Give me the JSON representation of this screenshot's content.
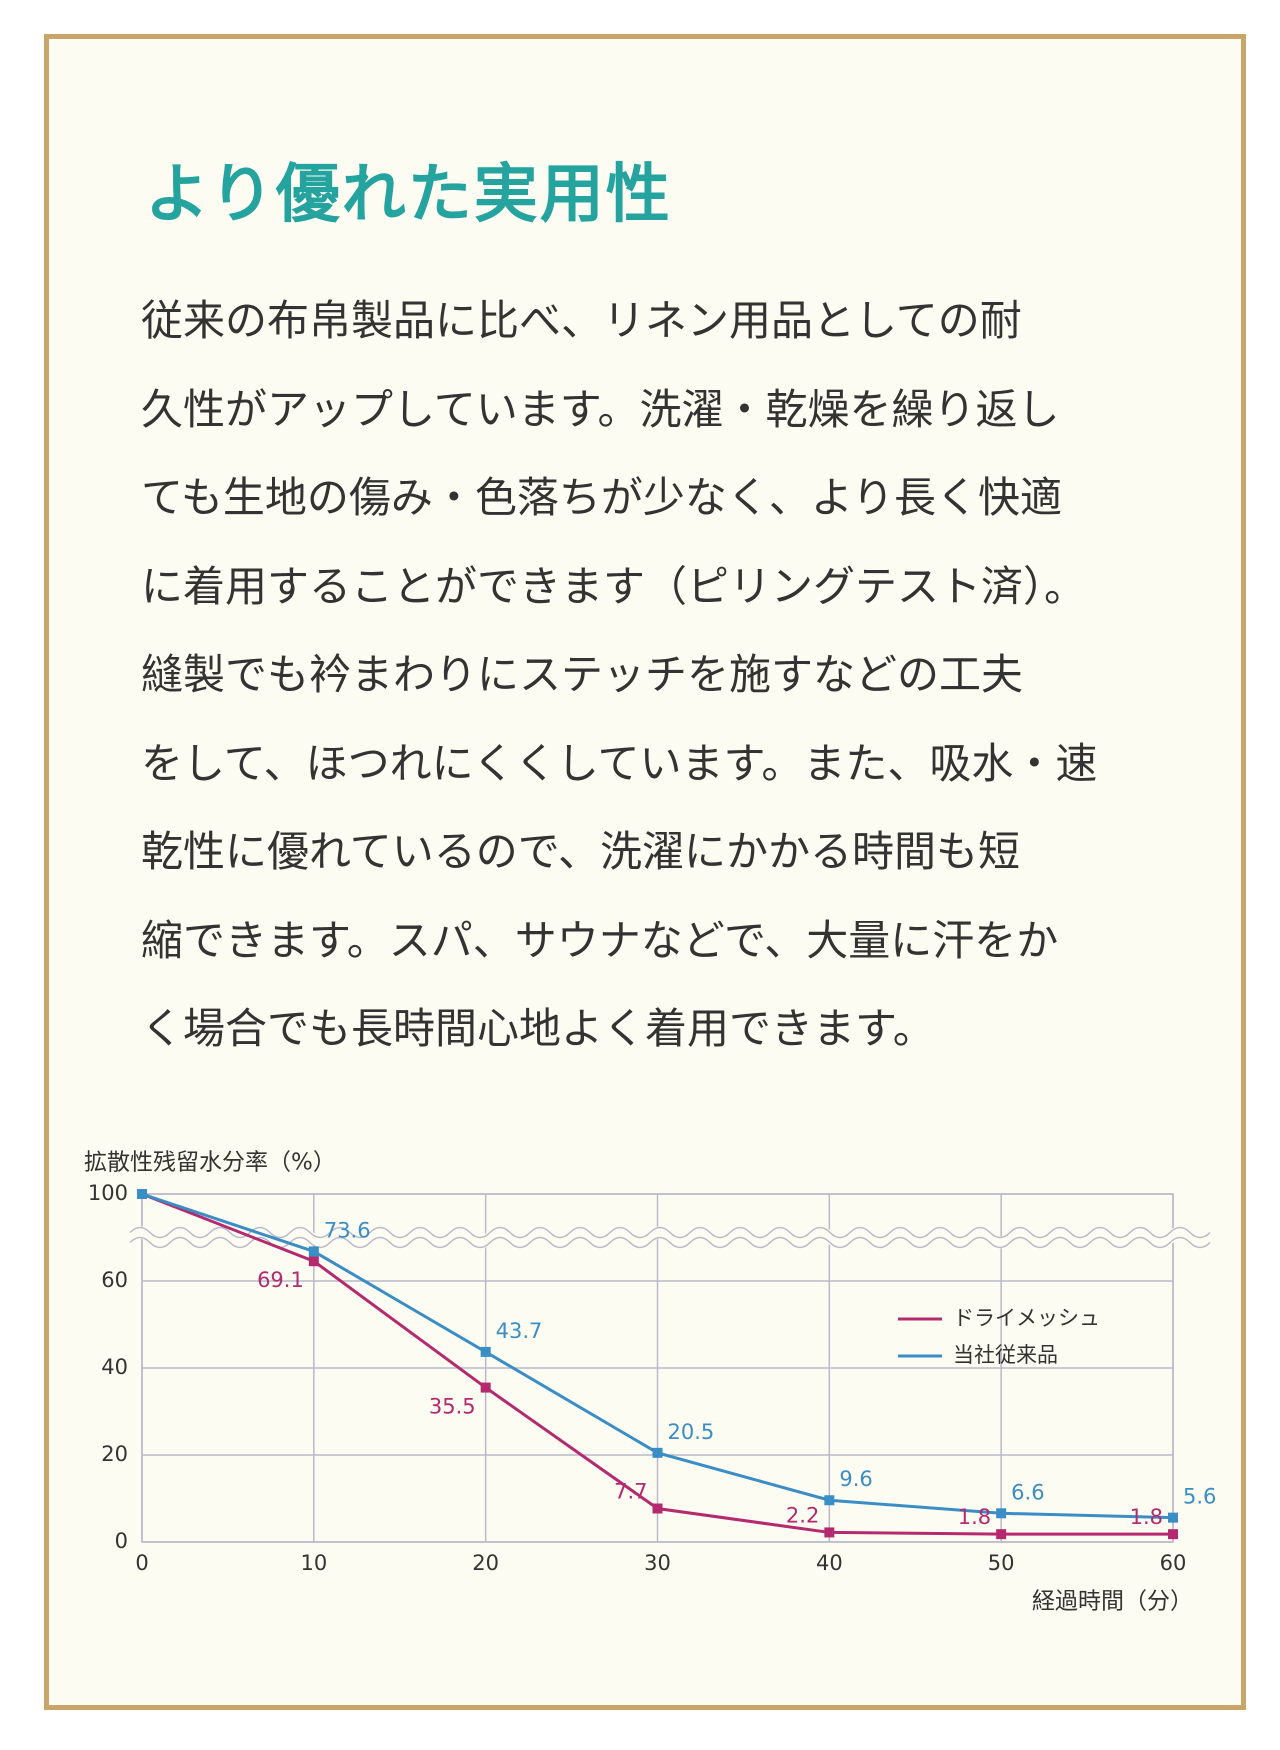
{
  "title": "より優れた実用性",
  "body": {
    "lines": [
      "従来の布帛製品に比べ、リネン用品としての耐",
      "久性がアップしています。洗濯・乾燥を繰り返し",
      "ても生地の傷み・色落ちが少なく、より長く快適",
      "に着用することができます（ピリングテスト済）。",
      "縫製でも衿まわりにステッチを施すなどの工夫",
      "をして、ほつれにくくしています。また、吸水・速",
      "乾性に優れているので、洗濯にかかる時間も短",
      "縮できます。スパ、サウナなどで、大量に汗をか",
      "く場合でも長時間心地よく着用できます。"
    ]
  },
  "chart_data": {
    "type": "line",
    "y_label": "拡散性残留水分率（%）",
    "x_label": "経過時間（分）",
    "x": [
      0,
      10,
      20,
      30,
      40,
      50,
      60
    ],
    "series": [
      {
        "name": "ドライメッシュ",
        "color": "#b52a6e",
        "values": [
          100,
          69.1,
          35.5,
          7.7,
          2.2,
          1.8,
          1.8
        ]
      },
      {
        "name": "当社従来品",
        "color": "#3b8dc6",
        "values": [
          100,
          73.6,
          43.7,
          20.5,
          9.6,
          6.6,
          5.6
        ]
      }
    ],
    "xlim": [
      0,
      60
    ],
    "xticks": [
      0,
      10,
      20,
      30,
      40,
      50,
      60
    ],
    "ylim": [
      0,
      100
    ],
    "yticks": [
      0,
      20,
      40,
      60,
      100
    ],
    "grid": true,
    "legend": "right"
  }
}
